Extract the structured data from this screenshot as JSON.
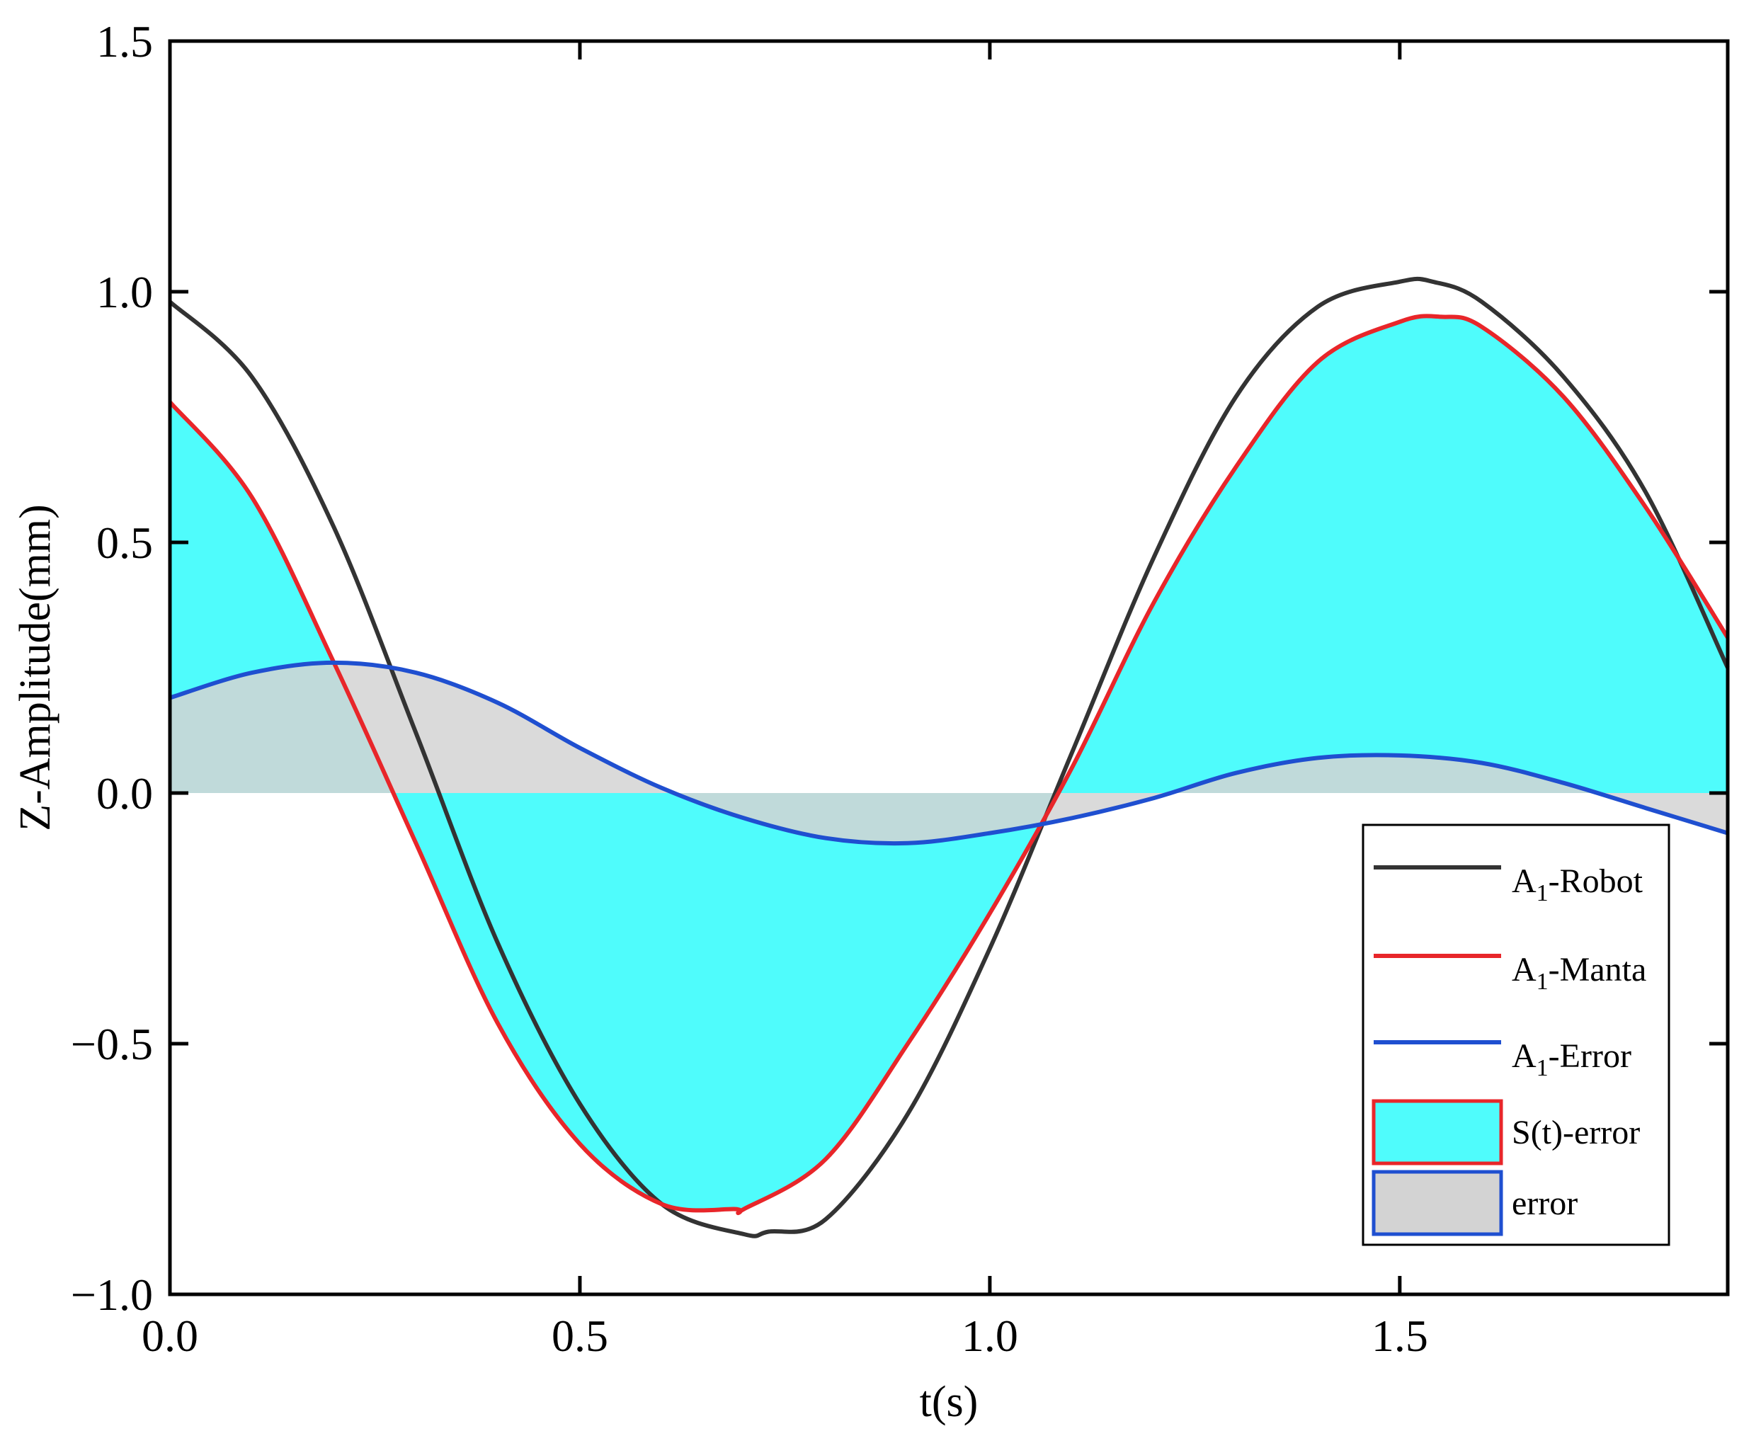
{
  "chart_data": {
    "type": "line",
    "xlabel": "t(s)",
    "ylabel": "Z-Amplitude(mm)",
    "xlim": [
      0.0,
      1.9
    ],
    "ylim": [
      -1.0,
      1.5
    ],
    "xticks": [
      0.0,
      0.5,
      1.0,
      1.5
    ],
    "xtick_labels": [
      "0.0",
      "0.5",
      "1.0",
      "1.5"
    ],
    "yticks": [
      -1.0,
      -0.5,
      0.0,
      0.5,
      1.0,
      1.5
    ],
    "ytick_labels": [
      "−1.0",
      "−0.5",
      "0.0",
      "0.5",
      "1.0",
      "1.5"
    ],
    "grid": false,
    "legend_position": "bottom-right",
    "series": [
      {
        "name": "A1-Robot",
        "color": "#333333",
        "x": [
          0.0,
          0.1,
          0.2,
          0.3,
          0.4,
          0.5,
          0.6,
          0.7,
          0.73,
          0.8,
          0.9,
          1.0,
          1.1,
          1.2,
          1.3,
          1.4,
          1.5,
          1.54,
          1.6,
          1.7,
          1.8,
          1.9
        ],
        "y": [
          0.98,
          0.83,
          0.53,
          0.12,
          -0.3,
          -0.62,
          -0.82,
          -0.88,
          -0.875,
          -0.85,
          -0.64,
          -0.31,
          0.08,
          0.47,
          0.79,
          0.97,
          1.02,
          1.02,
          0.98,
          0.83,
          0.6,
          0.25
        ]
      },
      {
        "name": "A1-Manta",
        "color": "#e8262a",
        "x": [
          0.0,
          0.1,
          0.2,
          0.3,
          0.4,
          0.5,
          0.6,
          0.69,
          0.7,
          0.8,
          0.9,
          1.0,
          1.1,
          1.2,
          1.3,
          1.4,
          1.5,
          1.55,
          1.6,
          1.7,
          1.8,
          1.9
        ],
        "y": [
          0.78,
          0.59,
          0.26,
          -0.1,
          -0.46,
          -0.7,
          -0.82,
          -0.83,
          -0.83,
          -0.73,
          -0.5,
          -0.24,
          0.05,
          0.38,
          0.65,
          0.86,
          0.94,
          0.95,
          0.93,
          0.79,
          0.57,
          0.31
        ]
      },
      {
        "name": "A1-Error",
        "color": "#1f4fd0",
        "x": [
          0.0,
          0.1,
          0.2,
          0.3,
          0.4,
          0.5,
          0.6,
          0.7,
          0.8,
          0.9,
          1.0,
          1.1,
          1.2,
          1.3,
          1.4,
          1.5,
          1.6,
          1.7,
          1.8,
          1.9
        ],
        "y": [
          0.19,
          0.24,
          0.26,
          0.24,
          0.18,
          0.09,
          0.01,
          -0.05,
          -0.09,
          -0.1,
          -0.08,
          -0.05,
          -0.01,
          0.04,
          0.07,
          0.075,
          0.06,
          0.02,
          -0.03,
          -0.08
        ]
      }
    ],
    "fills": [
      {
        "name": "S(t)-error",
        "between": [
          "A1-Manta",
          "zero"
        ],
        "color": "#4ffcfc",
        "edge_color": "#e8262a"
      },
      {
        "name": "error",
        "between": [
          "A1-Error",
          "zero"
        ],
        "color": "#d3d3d3",
        "edge_color": "#1f4fd0"
      }
    ]
  }
}
